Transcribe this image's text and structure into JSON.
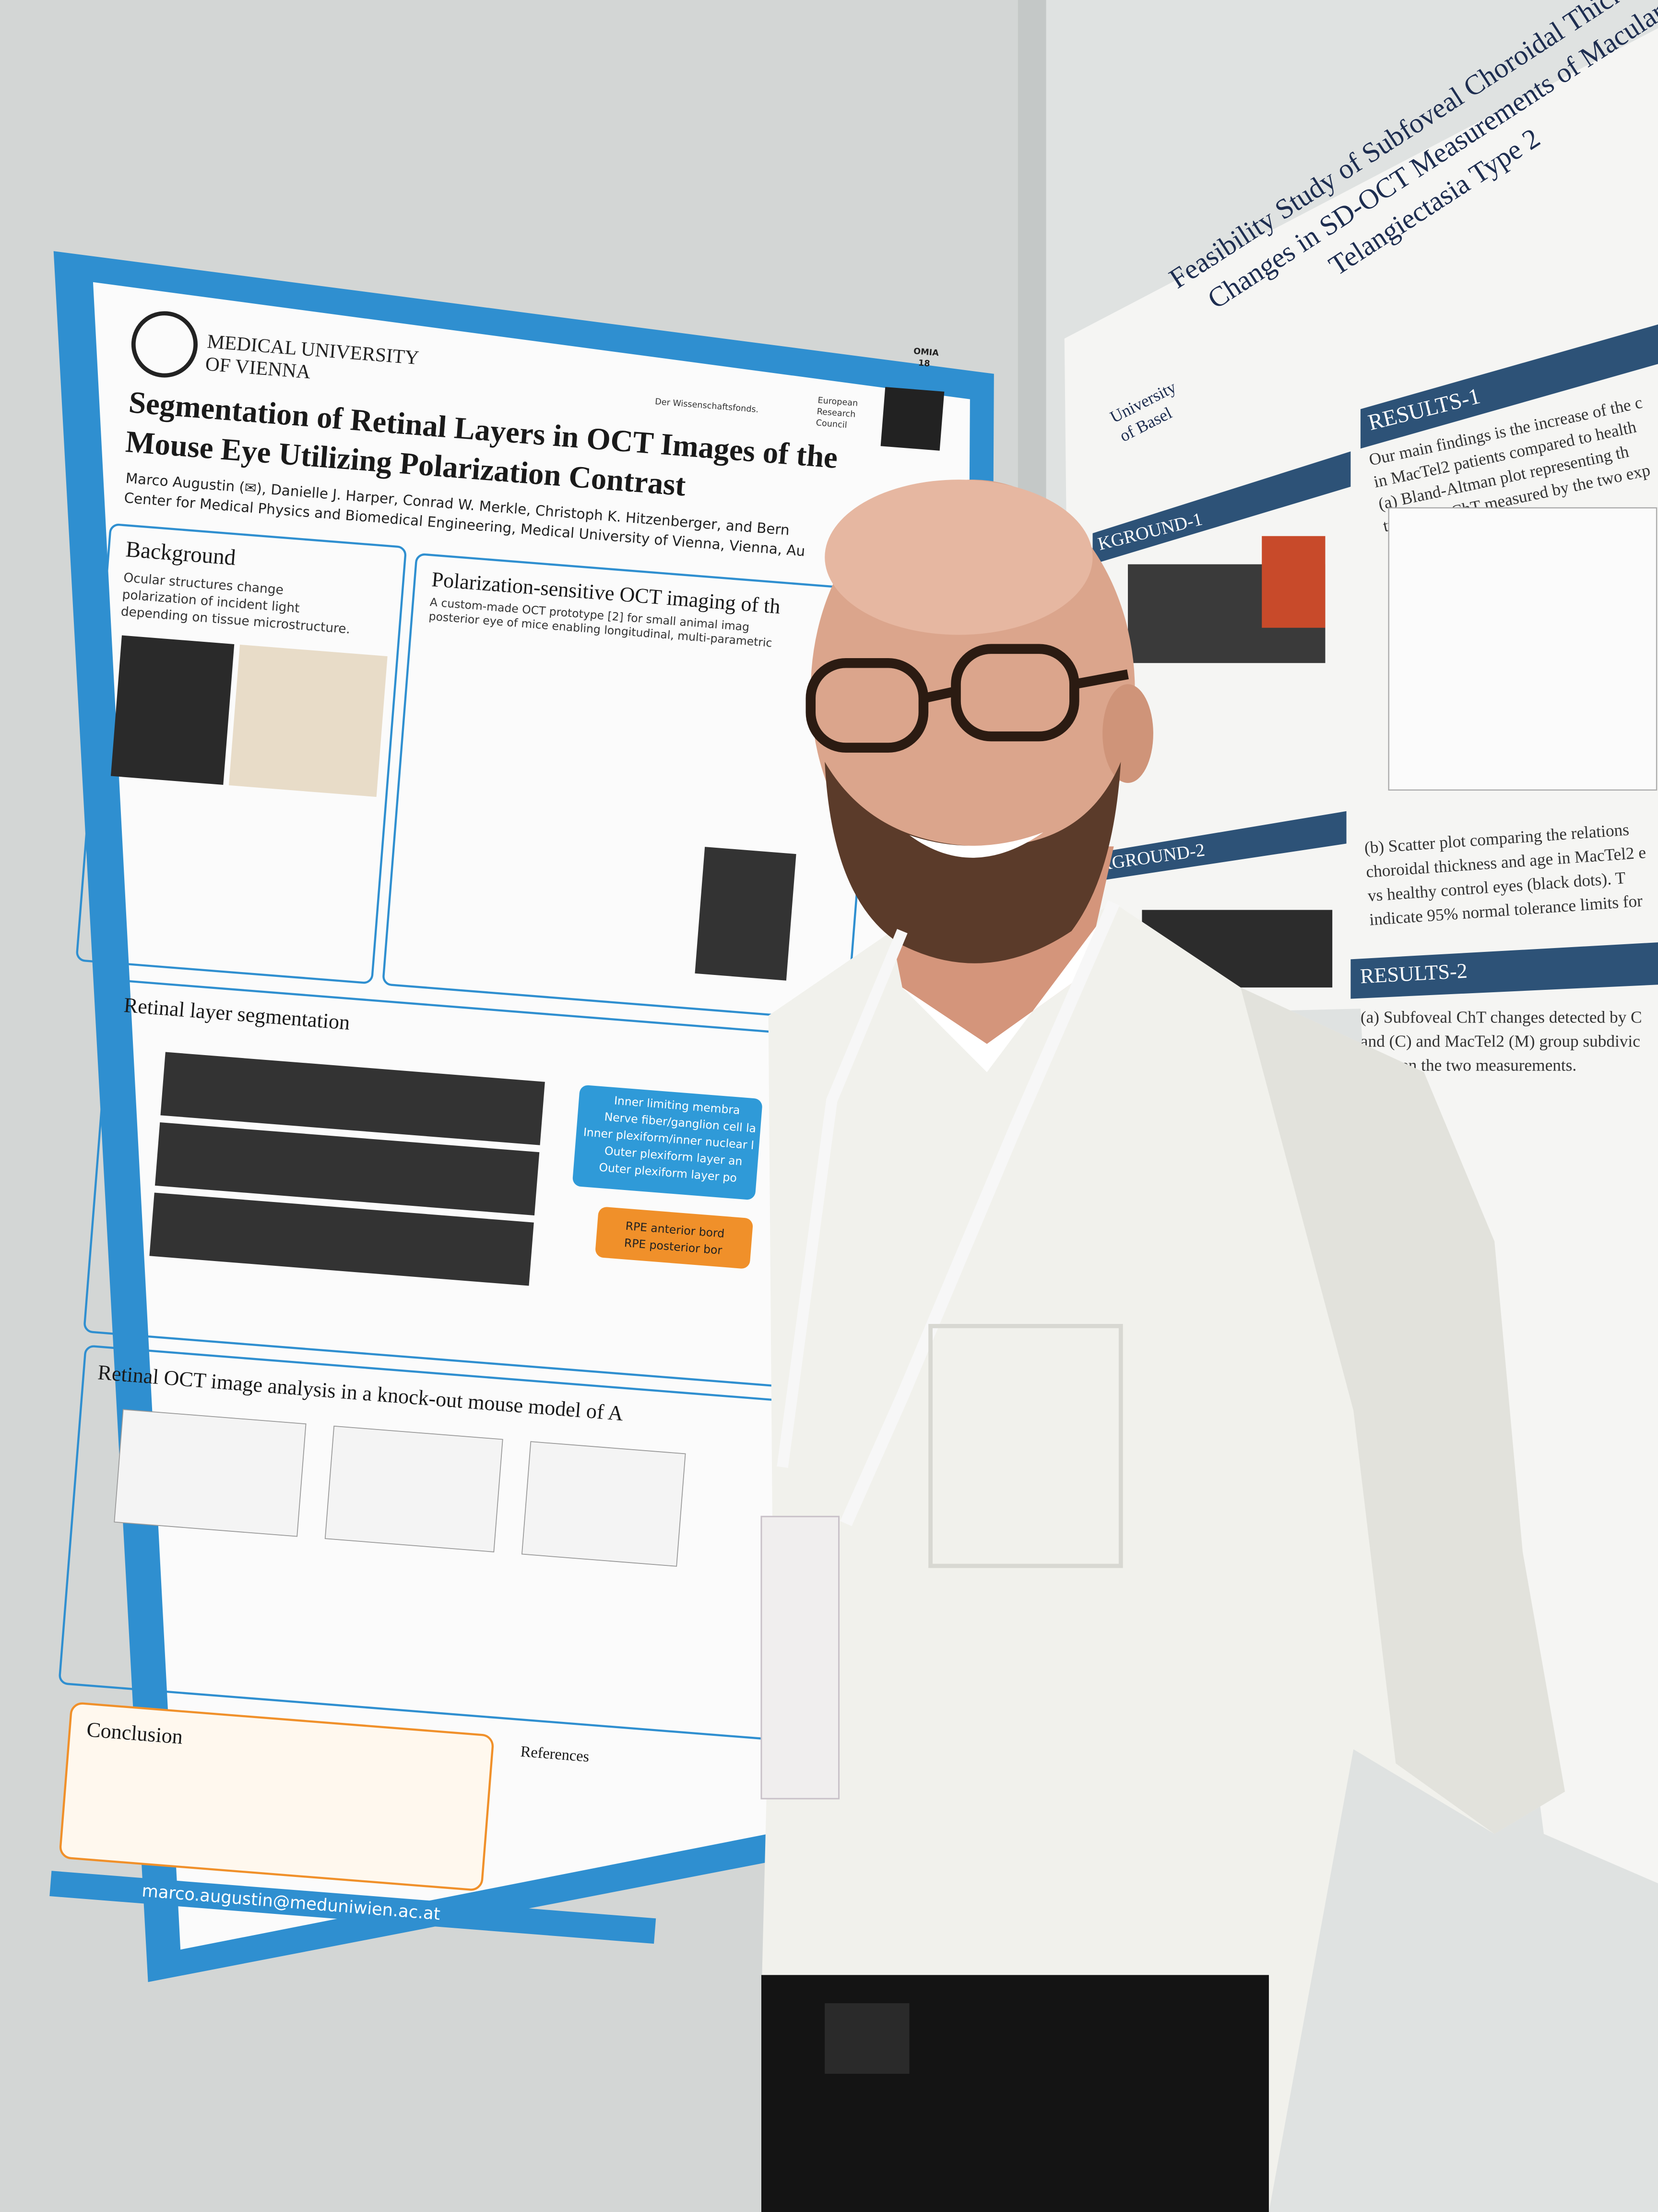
{
  "left_poster": {
    "badge": [
      "OMIA",
      "18"
    ],
    "institution": [
      "MEDICAL UNIVERSITY",
      "OF VIENNA"
    ],
    "funder": "Der Wissenschaftsfonds.",
    "erc": [
      "European",
      "Research",
      "Council"
    ],
    "title": [
      "Segmentation of Retinal Layers in OCT Images of the",
      "Mouse Eye Utilizing Polarization Contrast"
    ],
    "authors": "Marco Augustin (✉), Danielle J. Harper, Conrad W. Merkle, Christoph K. Hitzenberger, and Bern",
    "affiliation": "Center for Medical Physics and Biomedical Engineering, Medical University of Vienna, Vienna, Au",
    "background": {
      "heading": "Background",
      "text": [
        "Ocular structures change",
        "polarization of incident light",
        "depending on tissue microstructure."
      ]
    },
    "ps_oct": {
      "heading": "Polarization-sensitive OCT imaging of th",
      "text": [
        "A custom-made OCT prototype [2] for small animal imag",
        "posterior eye of mice enabling longitudinal, multi-parametric"
      ]
    },
    "segmentation": {
      "heading": "Retinal layer segmentation",
      "layers": [
        "Inner limiting membra",
        "Nerve fiber/ganglion cell la",
        "Inner plexiform/inner nuclear l",
        "Outer plexiform layer an",
        "Outer plexiform layer po"
      ],
      "rpe": [
        "RPE anterior bord",
        "RPE posterior bor"
      ]
    },
    "analysis": {
      "heading": "Retinal OCT image analysis in a knock-out mouse model of A"
    },
    "conclusion": {
      "heading": "Conclusion"
    },
    "references": {
      "heading": "References"
    },
    "email": "marco.augustin@meduniwien.ac.at"
  },
  "right_poster": {
    "title": [
      "Feasibility Study of Subfoveal Choroidal Thickness",
      "Changes in SD-OCT Measurements of Macular",
      "Telangiectasia Type 2"
    ],
    "university": [
      "University",
      "of Basel"
    ],
    "sections": [
      "RESULTS-1",
      "KGROUND-1",
      "KGROUND-2",
      "RESULTS-2"
    ],
    "results1_text": [
      "Our main findings is the increase of the c",
      "in MacTel2 patients compared to health",
      "(a) Bland-Altman plot representing  th",
      "tween the ChT measured by the two exp"
    ],
    "results2_text": [
      "(a) Subfoveal ChT changes detected by C",
      "and (C) and MacTel2 (M) group subdivic",
      "between the two measurements."
    ],
    "scatter_text": [
      "(b) Scatter plot comparing the relations",
      "choroidal thickness and age in MacTel2 e",
      "vs healthy control eyes (black dots).   T",
      "indicate 95% normal tolerance limits for"
    ]
  }
}
